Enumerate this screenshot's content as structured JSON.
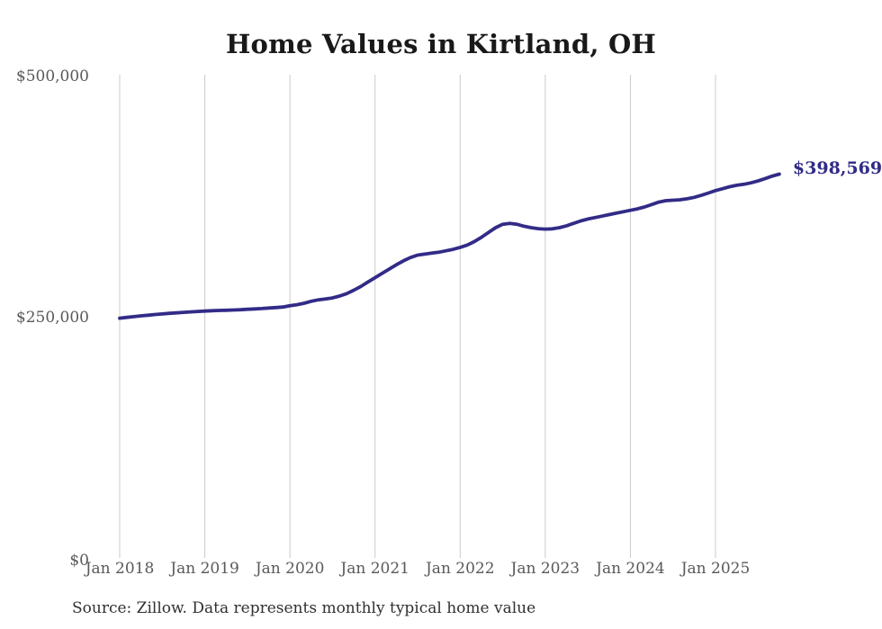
{
  "title": "Home Values in Kirtland, OH",
  "source_note": "Source: Zillow. Data represents monthly typical home value",
  "end_label": "$398,569",
  "colors": {
    "line": "#322b87",
    "end_label": "#312b87",
    "grid": "#cbcbcb",
    "axis_text": "#595959",
    "title_text": "#191919",
    "source_text": "#303030",
    "background": "#ffffff"
  },
  "chart_data": {
    "type": "line",
    "title": "Home Values in Kirtland, OH",
    "series_name": "Typical home value (USD)",
    "grid": "vertical-only",
    "legend": "none",
    "ylim": [
      0,
      500000
    ],
    "y_ticks": [
      {
        "label": "$0",
        "value": 0
      },
      {
        "label": "$250,000",
        "value": 250000
      },
      {
        "label": "$500,000",
        "value": 500000
      }
    ],
    "x_ticks": [
      {
        "label": "Jan 2018",
        "month_index": 0
      },
      {
        "label": "Jan 2019",
        "month_index": 12
      },
      {
        "label": "Jan 2020",
        "month_index": 24
      },
      {
        "label": "Jan 2021",
        "month_index": 36
      },
      {
        "label": "Jan 2022",
        "month_index": 48
      },
      {
        "label": "Jan 2023",
        "month_index": 60
      },
      {
        "label": "Jan 2024",
        "month_index": 72
      },
      {
        "label": "Jan 2025",
        "month_index": 84
      }
    ],
    "x": [
      "2018-01",
      "2018-02",
      "2018-03",
      "2018-04",
      "2018-05",
      "2018-06",
      "2018-07",
      "2018-08",
      "2018-09",
      "2018-10",
      "2018-11",
      "2018-12",
      "2019-01",
      "2019-02",
      "2019-03",
      "2019-04",
      "2019-05",
      "2019-06",
      "2019-07",
      "2019-08",
      "2019-09",
      "2019-10",
      "2019-11",
      "2019-12",
      "2020-01",
      "2020-02",
      "2020-03",
      "2020-04",
      "2020-05",
      "2020-06",
      "2020-07",
      "2020-08",
      "2020-09",
      "2020-10",
      "2020-11",
      "2020-12",
      "2021-01",
      "2021-02",
      "2021-03",
      "2021-04",
      "2021-05",
      "2021-06",
      "2021-07",
      "2021-08",
      "2021-09",
      "2021-10",
      "2021-11",
      "2021-12",
      "2022-01",
      "2022-02",
      "2022-03",
      "2022-04",
      "2022-05",
      "2022-06",
      "2022-07",
      "2022-08",
      "2022-09",
      "2022-10",
      "2022-11",
      "2022-12",
      "2023-01",
      "2023-02",
      "2023-03",
      "2023-04",
      "2023-05",
      "2023-06",
      "2023-07",
      "2023-08",
      "2023-09",
      "2023-10",
      "2023-11",
      "2023-12",
      "2024-01",
      "2024-02",
      "2024-03",
      "2024-04",
      "2024-05",
      "2024-06",
      "2024-07",
      "2024-08",
      "2024-09",
      "2024-10",
      "2024-11",
      "2024-12",
      "2025-01",
      "2025-02",
      "2025-03",
      "2025-04",
      "2025-05",
      "2025-06",
      "2025-07",
      "2025-08",
      "2025-09",
      "2025-10"
    ],
    "values": [
      249000,
      249800,
      250600,
      251400,
      252100,
      252800,
      253400,
      254000,
      254500,
      255000,
      255500,
      256000,
      256400,
      256700,
      257000,
      257200,
      257500,
      257800,
      258200,
      258600,
      259000,
      259500,
      260000,
      260600,
      262000,
      263000,
      264500,
      266500,
      268000,
      269000,
      270000,
      272000,
      274500,
      278000,
      282000,
      286500,
      291000,
      295500,
      300000,
      304500,
      308500,
      312000,
      314500,
      315500,
      316500,
      317500,
      319000,
      320500,
      322500,
      325000,
      328500,
      333000,
      338000,
      343000,
      346500,
      347500,
      346500,
      344500,
      343000,
      342000,
      341500,
      341800,
      343000,
      345000,
      347500,
      350000,
      352000,
      353500,
      355000,
      356500,
      358000,
      359500,
      361000,
      362500,
      364500,
      367000,
      369500,
      371000,
      371500,
      372000,
      373000,
      374500,
      376500,
      379000,
      381500,
      383500,
      385500,
      387000,
      388000,
      389500,
      391500,
      394000,
      396500,
      398569
    ],
    "last_value": 398569,
    "last_point_label": "$398,569"
  }
}
